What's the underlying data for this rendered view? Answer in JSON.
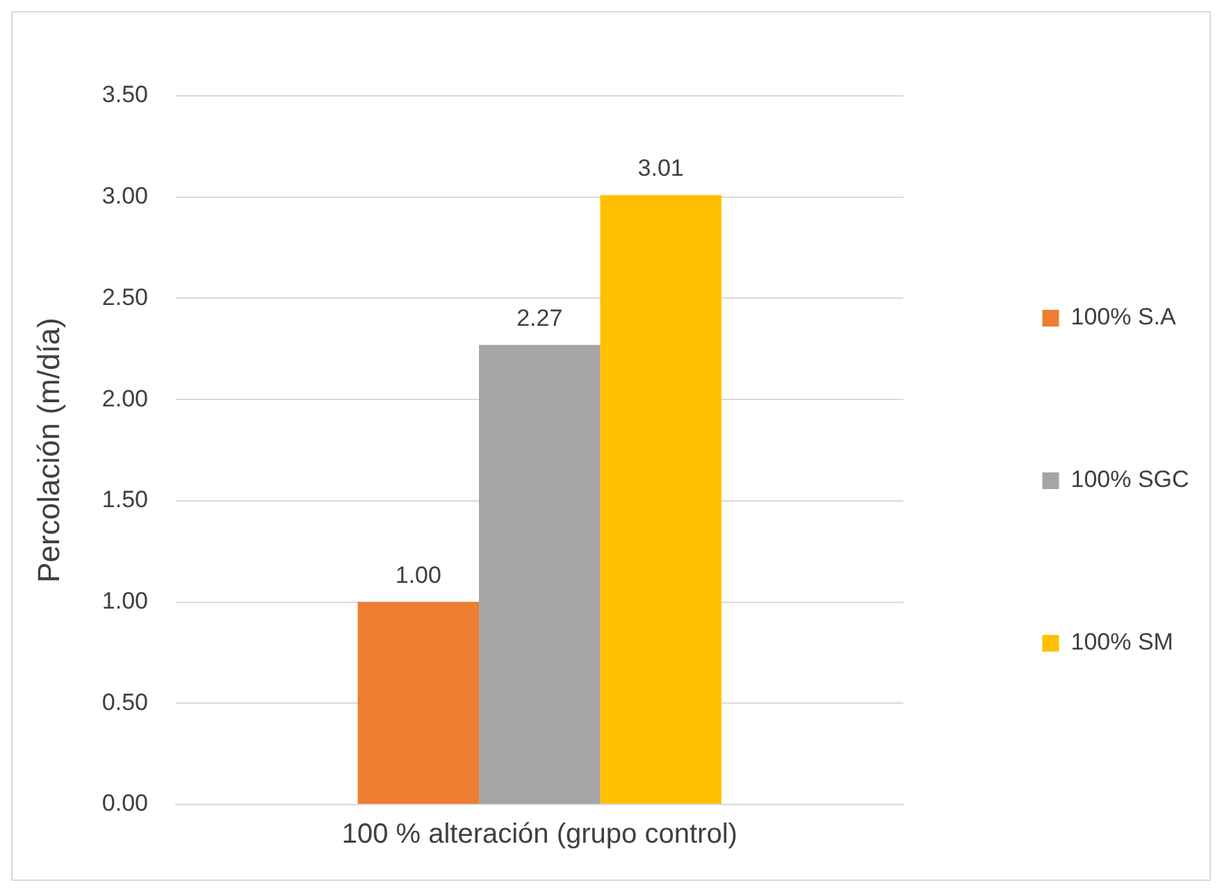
{
  "chart_data": {
    "type": "bar",
    "ylabel": "Percolación (m/día)",
    "categories": [
      "100 % alteración (grupo control)"
    ],
    "series": [
      {
        "name": "100% S.A",
        "color": "#ed7d31",
        "values": [
          1.0
        ],
        "value_labels": [
          "1.00"
        ]
      },
      {
        "name": "100% SGC",
        "color": "#a5a5a5",
        "values": [
          2.27
        ],
        "value_labels": [
          "2.27"
        ]
      },
      {
        "name": "100% SM",
        "color": "#ffc000",
        "values": [
          3.01
        ],
        "value_labels": [
          "3.01"
        ]
      }
    ],
    "ylim": [
      0,
      3.5
    ],
    "yticks": [
      {
        "value": 0,
        "label": "0.00"
      },
      {
        "value": 0.5,
        "label": "0.50"
      },
      {
        "value": 1,
        "label": "1.00"
      },
      {
        "value": 1.5,
        "label": "1.50"
      },
      {
        "value": 2,
        "label": "2.00"
      },
      {
        "value": 2.5,
        "label": "2.50"
      },
      {
        "value": 3,
        "label": "3.00"
      },
      {
        "value": 3.5,
        "label": "3.50"
      }
    ],
    "grid": "y",
    "legend": "right"
  }
}
